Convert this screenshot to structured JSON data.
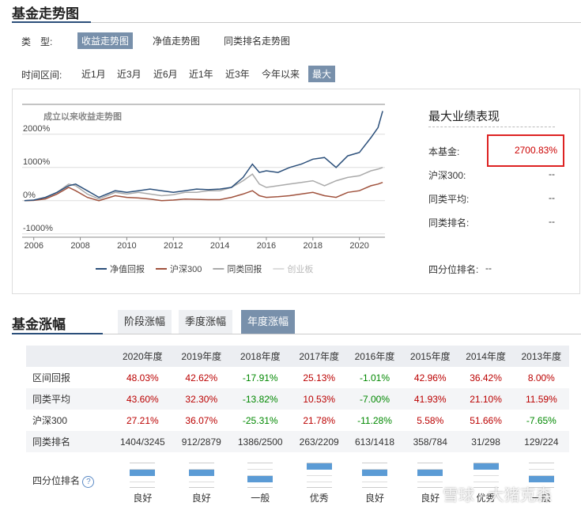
{
  "trend": {
    "header": "基金走势图",
    "type_label": "类　型:",
    "type_tabs": [
      "收益走势图",
      "净值走势图",
      "同类排名走势图"
    ],
    "range_label": "时间区间:",
    "range_tabs": [
      "近1月",
      "近3月",
      "近6月",
      "近1年",
      "近3年",
      "今年以来",
      "最大"
    ],
    "best": {
      "title": "最大业绩表现",
      "rows": [
        [
          "本基金:",
          "2700.83%"
        ],
        [
          "沪深300:",
          "--"
        ],
        [
          "同类平均:",
          "--"
        ],
        [
          "同类排名:",
          "--"
        ]
      ],
      "quartile": [
        "四分位排名:",
        "--"
      ]
    }
  },
  "chart_data": {
    "type": "line",
    "title": "成立以来收益走势图",
    "x": [
      2005.6,
      2006,
      2006.5,
      2007,
      2007.5,
      2007.8,
      2008.3,
      2008.8,
      2009.5,
      2010,
      2010.5,
      2011,
      2011.5,
      2012,
      2012.5,
      2013,
      2013.5,
      2014,
      2014.5,
      2015,
      2015.4,
      2015.7,
      2016,
      2016.5,
      2017,
      2017.5,
      2018,
      2018.5,
      2019,
      2019.5,
      2020,
      2020.5,
      2020.8,
      2021
    ],
    "series": [
      {
        "name": "净值回报",
        "color": "#2b4f7a",
        "values": [
          0,
          20,
          100,
          250,
          450,
          500,
          300,
          100,
          300,
          250,
          300,
          350,
          300,
          250,
          300,
          350,
          330,
          350,
          400,
          700,
          1100,
          850,
          900,
          850,
          1000,
          1100,
          1250,
          1300,
          1000,
          1350,
          1450,
          1900,
          2200,
          2700
        ]
      },
      {
        "name": "沪深300",
        "color": "#a0523d",
        "values": [
          0,
          10,
          50,
          200,
          400,
          300,
          100,
          0,
          150,
          100,
          80,
          50,
          0,
          20,
          50,
          40,
          30,
          30,
          100,
          200,
          300,
          150,
          100,
          120,
          150,
          200,
          250,
          150,
          100,
          250,
          300,
          450,
          500,
          550
        ]
      },
      {
        "name": "同类回报",
        "color": "#aaaaaa",
        "values": [
          0,
          10,
          80,
          250,
          500,
          450,
          200,
          50,
          250,
          200,
          250,
          200,
          150,
          180,
          250,
          250,
          300,
          300,
          400,
          600,
          800,
          500,
          400,
          450,
          500,
          550,
          600,
          450,
          600,
          700,
          750,
          900,
          950,
          1000
        ]
      }
    ],
    "disabled_legend": "创业板",
    "xlim": [
      2005.5,
      2021.1
    ],
    "xticks": [
      2006,
      2008,
      2010,
      2012,
      2014,
      2016,
      2018,
      2020
    ],
    "ylim": [
      -1100,
      2900
    ],
    "yticks": [
      {
        "value": 2000,
        "label": "2000%"
      },
      {
        "value": 1000,
        "label": "1000%"
      },
      {
        "value": 0,
        "label": "0%"
      },
      {
        "value": -1000,
        "label": "-1000%"
      }
    ],
    "grid": true
  },
  "fund_returns": {
    "header": "基金涨幅",
    "tabs": [
      "阶段涨幅",
      "季度涨幅",
      "年度涨幅"
    ],
    "table": {
      "columns": [
        "2020年度",
        "2019年度",
        "2018年度",
        "2017年度",
        "2016年度",
        "2015年度",
        "2014年度",
        "2013年度"
      ],
      "rows": [
        [
          "区间回报",
          "48.03%",
          "42.62%",
          "-17.91%",
          "25.13%",
          "-1.01%",
          "42.96%",
          "36.42%",
          "8.00%"
        ],
        [
          "同类平均",
          "43.60%",
          "32.30%",
          "-13.82%",
          "10.53%",
          "-7.00%",
          "41.93%",
          "21.10%",
          "11.59%"
        ],
        [
          "沪深300",
          "27.21%",
          "36.07%",
          "-25.31%",
          "21.78%",
          "-11.28%",
          "5.58%",
          "51.66%",
          "-7.65%"
        ],
        [
          "同类排名",
          "1404/3245",
          "912/2879",
          "1386/2500",
          "263/2209",
          "613/1418",
          "358/784",
          "31/298",
          "129/224"
        ]
      ]
    },
    "quartile": {
      "label": "四分位排名",
      "help": "?",
      "labels": [
        "良好",
        "良好",
        "一般",
        "优秀",
        "良好",
        "良好",
        "优秀",
        "一般"
      ]
    }
  },
  "watermark": "雪球 · 大猪克森"
}
